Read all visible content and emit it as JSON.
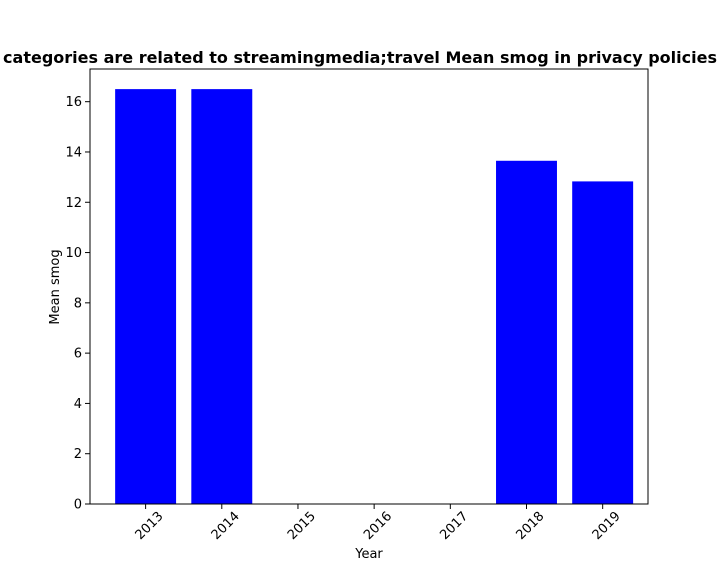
{
  "chart_data": {
    "type": "bar",
    "title": "categories are related to streamingmedia;travel Mean smog in privacy policies",
    "xlabel": "Year",
    "ylabel": "Mean smog",
    "categories": [
      "2013",
      "2014",
      "2015",
      "2016",
      "2017",
      "2018",
      "2019"
    ],
    "values": [
      16.5,
      16.5,
      0,
      0,
      0,
      13.65,
      12.83
    ],
    "ylim": [
      0,
      17.3
    ],
    "yticks": [
      "0",
      "2",
      "4",
      "6",
      "8",
      "10",
      "12",
      "14",
      "16"
    ],
    "bar_color": "#0000ff",
    "grid": false,
    "legend": "none"
  }
}
